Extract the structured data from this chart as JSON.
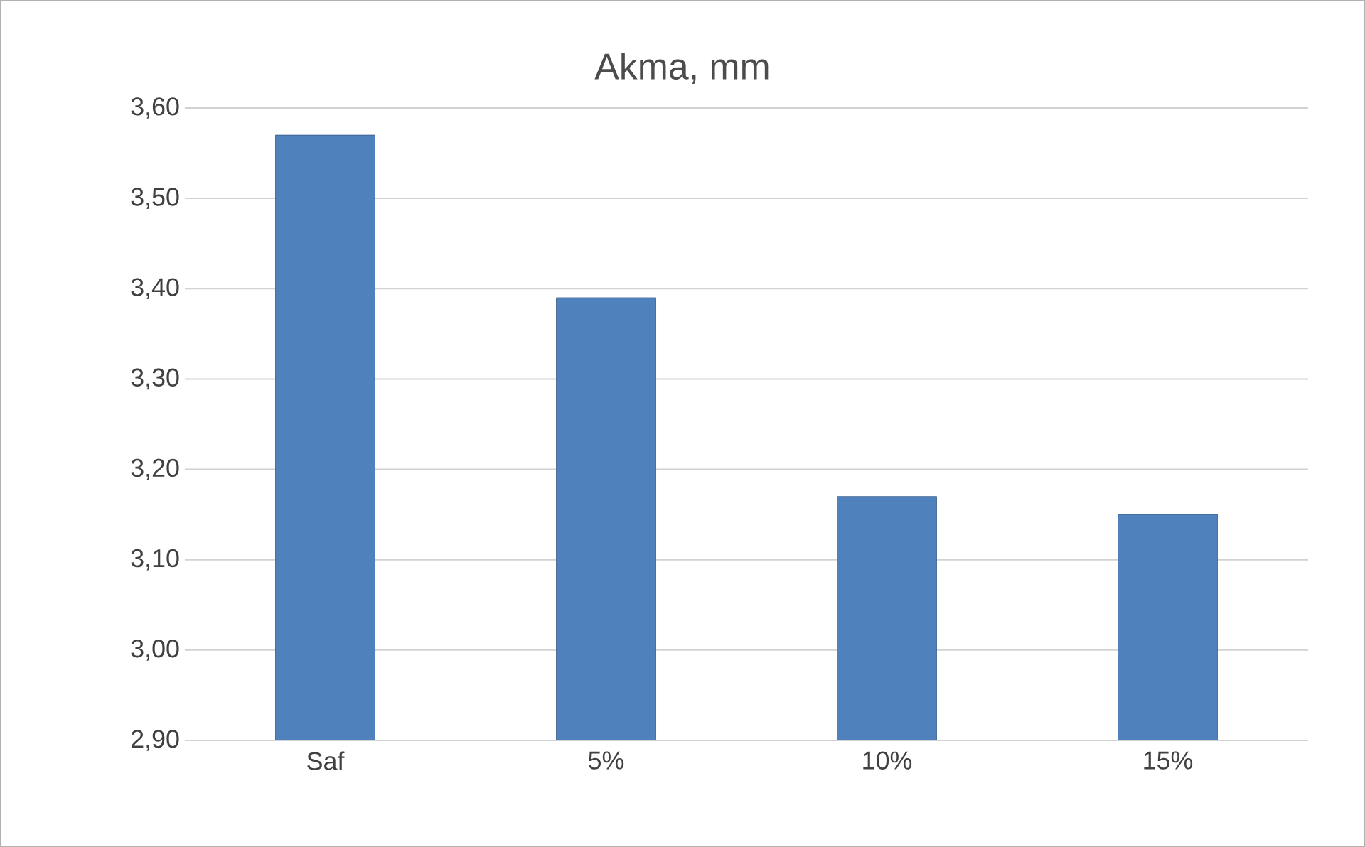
{
  "chart_data": {
    "type": "bar",
    "title": "Akma, mm",
    "categories": [
      "Saf",
      "5%",
      "10%",
      "15%"
    ],
    "values": [
      3.57,
      3.39,
      3.17,
      3.15
    ],
    "color": "#4f81bd",
    "ylim": [
      2.9,
      3.6
    ],
    "yticks": [
      {
        "value": 2.9,
        "label": "2,90"
      },
      {
        "value": 3.0,
        "label": "3,00"
      },
      {
        "value": 3.1,
        "label": "3,10"
      },
      {
        "value": 3.2,
        "label": "3,20"
      },
      {
        "value": 3.3,
        "label": "3,30"
      },
      {
        "value": 3.4,
        "label": "3,40"
      },
      {
        "value": 3.5,
        "label": "3,50"
      },
      {
        "value": 3.6,
        "label": "3,60"
      }
    ],
    "grid": "y"
  }
}
